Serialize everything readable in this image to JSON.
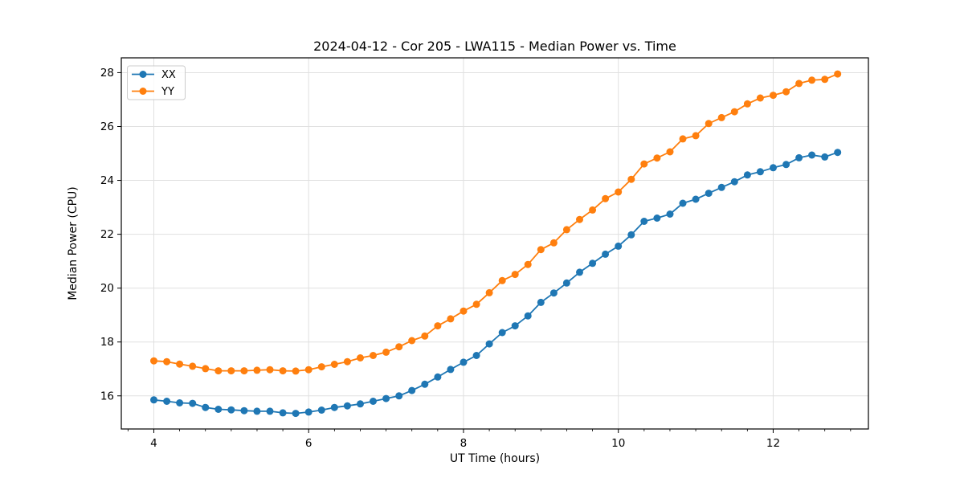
{
  "chart_data": {
    "type": "line",
    "title": "2024-04-12 - Cor 205 - LWA115 - Median Power vs. Time",
    "xlabel": "UT Time (hours)",
    "ylabel": "Median Power (CPU)",
    "xlim": [
      3.58,
      13.23
    ],
    "ylim": [
      14.77,
      28.55
    ],
    "x_ticks": [
      4,
      6,
      8,
      10,
      12
    ],
    "y_ticks": [
      16,
      18,
      20,
      22,
      24,
      26,
      28
    ],
    "x_minor_tick_step": 0.33333,
    "grid": true,
    "grid_color": "#e0e0e0",
    "spine_color": "#000000",
    "legend": {
      "position": "upper-left",
      "entries": [
        "XX",
        "YY"
      ]
    },
    "x": [
      4.0,
      4.167,
      4.333,
      4.5,
      4.667,
      4.833,
      5.0,
      5.167,
      5.333,
      5.5,
      5.667,
      5.833,
      6.0,
      6.167,
      6.333,
      6.5,
      6.667,
      6.833,
      7.0,
      7.167,
      7.333,
      7.5,
      7.667,
      7.833,
      8.0,
      8.167,
      8.333,
      8.5,
      8.667,
      8.833,
      9.0,
      9.167,
      9.333,
      9.5,
      9.667,
      9.833,
      10.0,
      10.167,
      10.333,
      10.5,
      10.667,
      10.833,
      11.0,
      11.167,
      11.333,
      11.5,
      11.667,
      11.833,
      12.0,
      12.167,
      12.333,
      12.5,
      12.667,
      12.833
    ],
    "series": [
      {
        "name": "XX",
        "color": "#1f77b4",
        "values": [
          15.85,
          15.8,
          15.74,
          15.72,
          15.57,
          15.5,
          15.48,
          15.45,
          15.43,
          15.43,
          15.37,
          15.35,
          15.4,
          15.47,
          15.57,
          15.63,
          15.7,
          15.8,
          15.9,
          16.0,
          16.2,
          16.43,
          16.7,
          16.98,
          17.25,
          17.5,
          17.93,
          18.35,
          18.6,
          18.97,
          19.47,
          19.82,
          20.19,
          20.59,
          20.92,
          21.26,
          21.56,
          21.98,
          22.48,
          22.6,
          22.75,
          23.15,
          23.3,
          23.52,
          23.74,
          23.95,
          24.2,
          24.32,
          24.47,
          24.59,
          24.84,
          24.94,
          24.87,
          25.04
        ]
      },
      {
        "name": "YY",
        "color": "#ff7f0e",
        "values": [
          17.3,
          17.27,
          17.18,
          17.1,
          17.01,
          16.93,
          16.93,
          16.93,
          16.95,
          16.97,
          16.93,
          16.92,
          16.97,
          17.08,
          17.17,
          17.27,
          17.41,
          17.5,
          17.62,
          17.82,
          18.05,
          18.22,
          18.6,
          18.86,
          19.15,
          19.4,
          19.83,
          20.28,
          20.51,
          20.88,
          21.43,
          21.68,
          22.17,
          22.55,
          22.9,
          23.32,
          23.57,
          24.04,
          24.61,
          24.83,
          25.06,
          25.54,
          25.66,
          26.11,
          26.33,
          26.55,
          26.84,
          27.06,
          27.16,
          27.29,
          27.6,
          27.72,
          27.75,
          27.95
        ]
      }
    ]
  }
}
